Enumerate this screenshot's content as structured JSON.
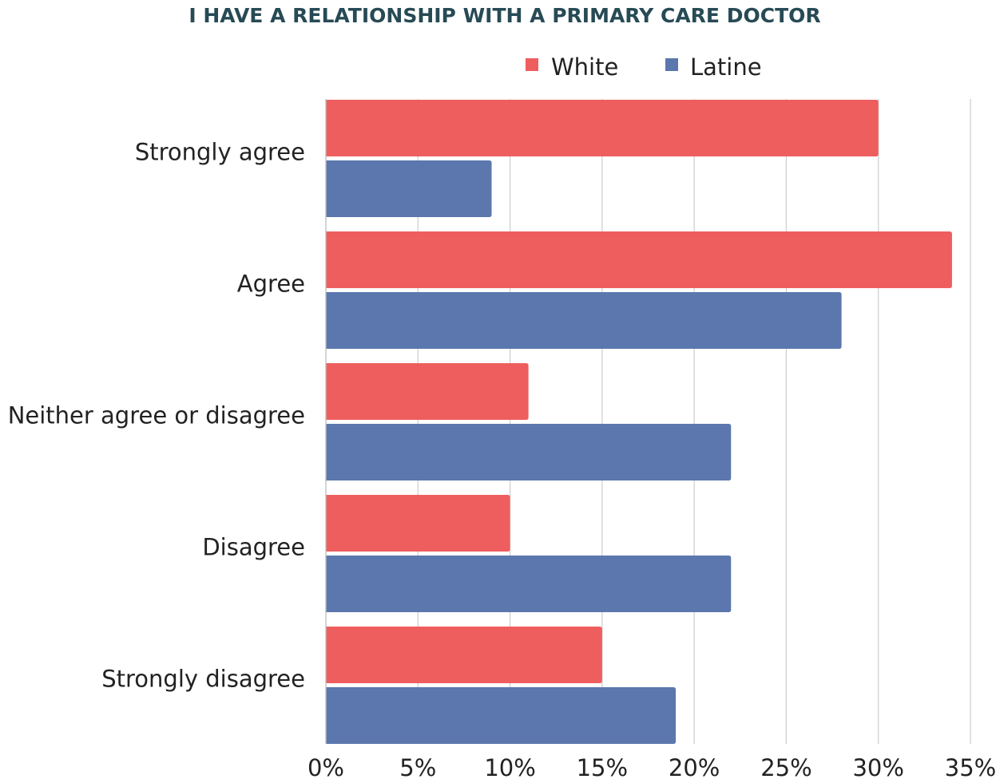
{
  "colors": {
    "white_series": "#EF5E5E",
    "latine_series": "#5B77AD",
    "title": "#274A55"
  },
  "chart_data": {
    "type": "bar",
    "orientation": "horizontal",
    "title": "I HAVE A RELATIONSHIP WITH A PRIMARY CARE DOCTOR",
    "categories": [
      "Strongly agree",
      "Agree",
      "Neither agree or disagree",
      "Disagree",
      "Strongly disagree"
    ],
    "series": [
      {
        "name": "White",
        "color": "#EF5E5E",
        "values": [
          30,
          34,
          11,
          10,
          15
        ]
      },
      {
        "name": "Latine",
        "color": "#5B77AD",
        "values": [
          9,
          28,
          22,
          22,
          19
        ]
      }
    ],
    "x_ticks": [
      "0%",
      "5%",
      "10%",
      "15%",
      "20%",
      "25%",
      "30%",
      "35%"
    ],
    "xlim": [
      0,
      35
    ],
    "value_unit": "%",
    "grid": "vertical",
    "legend_position": "top-right"
  }
}
